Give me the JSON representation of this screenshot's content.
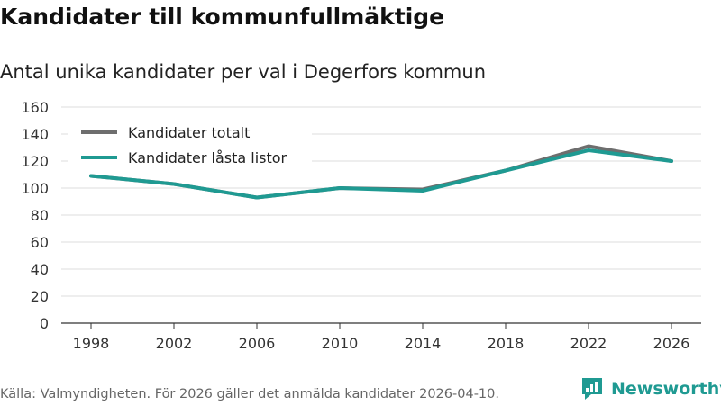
{
  "title": "Kandidater till kommunfullmäktige",
  "subtitle": "Antal unika kandidater per val i Degerfors kommun",
  "source": "Källa: Valmyndigheten. För 2026 gäller det anmälda kandidater 2026-04-10.",
  "brand": {
    "name": "Newsworthy",
    "color": "#1f9a92"
  },
  "chart_data": {
    "type": "line",
    "title": "Kandidater till kommunfullmäktige",
    "subtitle": "Antal unika kandidater per val i Degerfors kommun",
    "xlabel": "",
    "ylabel": "",
    "x": [
      "1998",
      "2002",
      "2006",
      "2010",
      "2014",
      "2018",
      "2022",
      "2026"
    ],
    "ylim": [
      0,
      160
    ],
    "yticks": [
      0,
      20,
      40,
      60,
      80,
      100,
      120,
      140,
      160
    ],
    "grid": true,
    "legend_position": "top-left",
    "series": [
      {
        "name": "Kandidater totalt",
        "color": "#6e6e6e",
        "values": [
          109,
          103,
          93,
          100,
          99,
          113,
          131,
          120
        ]
      },
      {
        "name": "Kandidater låsta listor",
        "color": "#1f9a92",
        "values": [
          109,
          103,
          93,
          100,
          98,
          113,
          128,
          120
        ]
      }
    ]
  }
}
